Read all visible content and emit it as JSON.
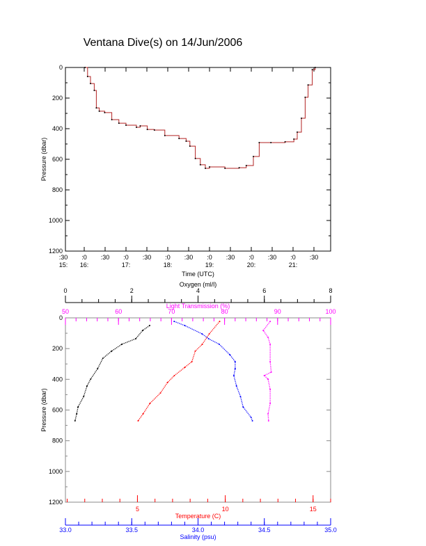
{
  "title": "Ventana Dive(s) on 14/Jun/2006",
  "colors": {
    "axis": "#000000",
    "trace": "#b22222",
    "oxygen": "#000000",
    "temperature": "#ff0000",
    "salinity": "#0000ff",
    "light": "#ff00ff"
  },
  "chart_data": [
    {
      "type": "line",
      "name": "pressure-vs-time",
      "xlabel": "Time (UTC)",
      "ylabel": "Pressure (dbar)",
      "xlim_hours": [
        15.55,
        21.9
      ],
      "ylim": [
        1200,
        0
      ],
      "x_tick_labels": [
        {
          "hour": 15.5,
          "minute": ":30",
          "hourlabel": "15:"
        },
        {
          "hour": 16.0,
          "minute": ":0",
          "hourlabel": "16:"
        },
        {
          "hour": 16.5,
          "minute": ":30",
          "hourlabel": ""
        },
        {
          "hour": 17.0,
          "minute": ":0",
          "hourlabel": "17:"
        },
        {
          "hour": 17.5,
          "minute": ":30",
          "hourlabel": ""
        },
        {
          "hour": 18.0,
          "minute": ":0",
          "hourlabel": "18:"
        },
        {
          "hour": 18.5,
          "minute": ":30",
          "hourlabel": ""
        },
        {
          "hour": 19.0,
          "minute": ":0",
          "hourlabel": "19:"
        },
        {
          "hour": 19.5,
          "minute": ":30",
          "hourlabel": ""
        },
        {
          "hour": 20.0,
          "minute": ":0",
          "hourlabel": "20:"
        },
        {
          "hour": 20.5,
          "minute": ":30",
          "hourlabel": ""
        },
        {
          "hour": 21.0,
          "minute": ":0",
          "hourlabel": "21:"
        },
        {
          "hour": 21.5,
          "minute": ":30",
          "hourlabel": ""
        }
      ],
      "y_ticks": [
        "0",
        "200",
        "400",
        "600",
        "800",
        "1000",
        "1200"
      ],
      "points": [
        [
          16.02,
          0
        ],
        [
          16.08,
          59
        ],
        [
          16.15,
          105
        ],
        [
          16.24,
          150
        ],
        [
          16.29,
          264
        ],
        [
          16.36,
          286
        ],
        [
          16.49,
          295
        ],
        [
          16.66,
          341
        ],
        [
          16.83,
          364
        ],
        [
          17.0,
          377
        ],
        [
          17.25,
          391
        ],
        [
          17.34,
          382
        ],
        [
          17.51,
          405
        ],
        [
          17.68,
          409
        ],
        [
          17.93,
          445
        ],
        [
          18.27,
          464
        ],
        [
          18.44,
          482
        ],
        [
          18.53,
          514
        ],
        [
          18.66,
          595
        ],
        [
          18.78,
          636
        ],
        [
          18.9,
          659
        ],
        [
          19.0,
          650
        ],
        [
          19.37,
          659
        ],
        [
          19.71,
          655
        ],
        [
          19.88,
          641
        ],
        [
          20.05,
          582
        ],
        [
          20.19,
          491
        ],
        [
          20.47,
          491
        ],
        [
          20.81,
          486
        ],
        [
          21.02,
          468
        ],
        [
          21.1,
          423
        ],
        [
          21.2,
          332
        ],
        [
          21.29,
          195
        ],
        [
          21.36,
          114
        ],
        [
          21.46,
          14
        ],
        [
          21.53,
          0
        ]
      ]
    },
    {
      "type": "scatter",
      "name": "profiles",
      "ylabel": "Pressure (dbar)",
      "ylim": [
        1200,
        0
      ],
      "y_ticks": [
        "0",
        "200",
        "400",
        "600",
        "800",
        "1000",
        "1200"
      ],
      "axes": {
        "oxygen": {
          "label": "Oxygen (ml/l)",
          "lim": [
            0,
            8
          ],
          "ticks": [
            "0",
            "2",
            "4",
            "6",
            "8"
          ],
          "minor": 0.5
        },
        "light": {
          "label": "Light Transmission (%)",
          "lim": [
            50,
            100
          ],
          "ticks": [
            "50",
            "60",
            "70",
            "80",
            "90",
            "100"
          ],
          "minor": 2
        },
        "temperature": {
          "label": "Temperature (C)",
          "lim": [
            0.9,
            16.0
          ],
          "ticks": [
            "5",
            "10",
            "15"
          ],
          "minor": 1
        },
        "salinity": {
          "label": "Salinity (psu)",
          "lim": [
            33.0,
            35.0
          ],
          "ticks": [
            "33.0",
            "33.5",
            "34.0",
            "34.5",
            "35.0"
          ],
          "minor": 0.1
        }
      },
      "series": [
        {
          "name": "oxygen",
          "points": [
            [
              2.54,
              50
            ],
            [
              2.33,
              82
            ],
            [
              2.12,
              136
            ],
            [
              1.7,
              172
            ],
            [
              1.39,
              217
            ],
            [
              1.13,
              263
            ],
            [
              0.97,
              331
            ],
            [
              0.76,
              399
            ],
            [
              0.65,
              444
            ],
            [
              0.55,
              512
            ],
            [
              0.38,
              580
            ],
            [
              0.34,
              625
            ],
            [
              0.29,
              670
            ]
          ]
        },
        {
          "name": "temperature",
          "points": [
            [
              9.68,
              23
            ],
            [
              9.09,
              104
            ],
            [
              8.69,
              172
            ],
            [
              8.29,
              217
            ],
            [
              8.1,
              285
            ],
            [
              7.7,
              322
            ],
            [
              7.1,
              376
            ],
            [
              6.71,
              421
            ],
            [
              6.31,
              489
            ],
            [
              5.71,
              557
            ],
            [
              5.32,
              625
            ],
            [
              5.04,
              670
            ]
          ]
        },
        {
          "name": "salinity",
          "points": [
            [
              33.82,
              23
            ],
            [
              33.9,
              50
            ],
            [
              34.03,
              104
            ],
            [
              34.08,
              136
            ],
            [
              34.16,
              172
            ],
            [
              34.24,
              240
            ],
            [
              34.28,
              285
            ],
            [
              34.28,
              331
            ],
            [
              34.27,
              376
            ],
            [
              34.29,
              444
            ],
            [
              34.32,
              512
            ],
            [
              34.34,
              580
            ],
            [
              34.4,
              648
            ],
            [
              34.41,
              670
            ]
          ]
        },
        {
          "name": "light",
          "points": [
            [
              88.6,
              23
            ],
            [
              87.3,
              82
            ],
            [
              88.2,
              127
            ],
            [
              88.6,
              172
            ],
            [
              88.6,
              285
            ],
            [
              88.8,
              353
            ],
            [
              87.5,
              376
            ],
            [
              88.2,
              399
            ],
            [
              88.6,
              466
            ],
            [
              88.6,
              557
            ],
            [
              88.2,
              625
            ],
            [
              88.3,
              670
            ]
          ]
        }
      ]
    }
  ]
}
